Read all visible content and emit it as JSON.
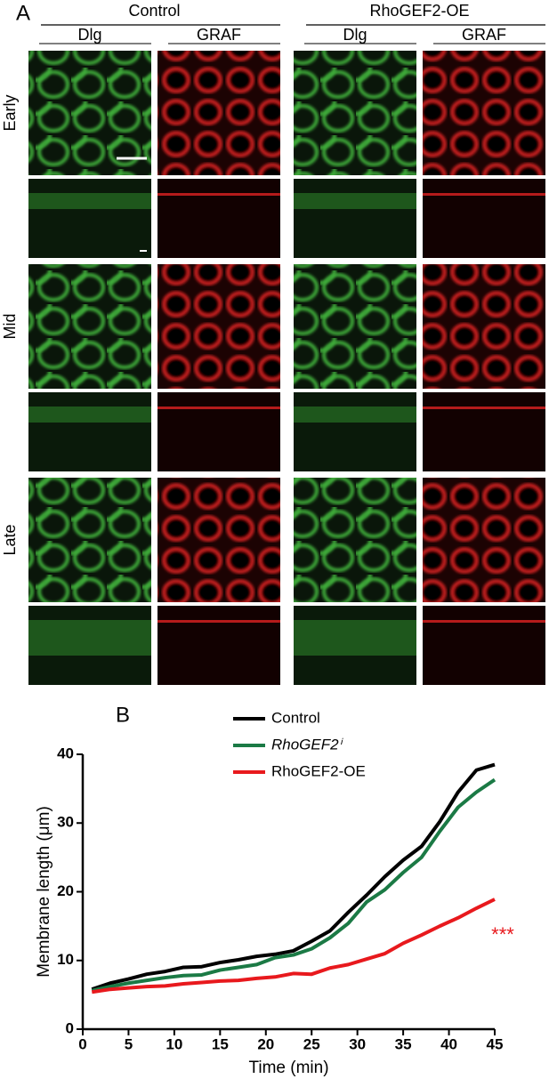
{
  "panel_a": {
    "label": "A",
    "groups": [
      {
        "title": "Control",
        "channels": [
          "Dlg",
          "GRAF"
        ]
      },
      {
        "title": "RhoGEF2-OE",
        "channels": [
          "Dlg",
          "GRAF"
        ]
      }
    ],
    "rows": [
      "Early",
      "Mid",
      "Late"
    ]
  },
  "chart_data": {
    "type": "line",
    "panel_label": "B",
    "xlabel": "Time (min)",
    "ylabel": "Membrane length (μm)",
    "annotation": "***",
    "x": [
      1,
      3,
      5,
      7,
      9,
      11,
      13,
      15,
      17,
      19,
      21,
      23,
      25,
      27,
      29,
      31,
      33,
      35,
      37,
      39,
      41,
      43,
      45
    ],
    "series": [
      {
        "name": "Control",
        "color": "#000000",
        "values": [
          5.8,
          6.7,
          7.3,
          8.0,
          8.4,
          9.0,
          9.1,
          9.7,
          10.1,
          10.6,
          10.9,
          11.4,
          12.8,
          14.3,
          17,
          19.5,
          22.2,
          24.6,
          26.6,
          30.2,
          34.5,
          37.7,
          38.5
        ]
      },
      {
        "name": "RhoGEF2ⁱ",
        "color": "#1b7a45",
        "values": [
          5.6,
          6.2,
          6.7,
          7.1,
          7.5,
          7.8,
          7.9,
          8.6,
          9.0,
          9.4,
          10.4,
          10.8,
          11.7,
          13.3,
          15.4,
          18.5,
          20.3,
          22.8,
          25.0,
          28.8,
          32.3,
          34.5,
          36.3
        ]
      },
      {
        "name": "RhoGEF2-OE",
        "color": "#e8191d",
        "values": [
          5.4,
          5.8,
          6.0,
          6.2,
          6.3,
          6.6,
          6.8,
          7.0,
          7.1,
          7.4,
          7.6,
          8.1,
          8.0,
          8.9,
          9.4,
          10.2,
          11.0,
          12.5,
          13.7,
          15.0,
          16.2,
          17.6,
          18.9
        ]
      }
    ],
    "xlim": [
      0,
      45
    ],
    "ylim": [
      0,
      40
    ],
    "xticks": [
      0,
      5,
      10,
      15,
      20,
      25,
      30,
      35,
      40,
      45
    ],
    "yticks": [
      0,
      10,
      20,
      30,
      40
    ]
  }
}
